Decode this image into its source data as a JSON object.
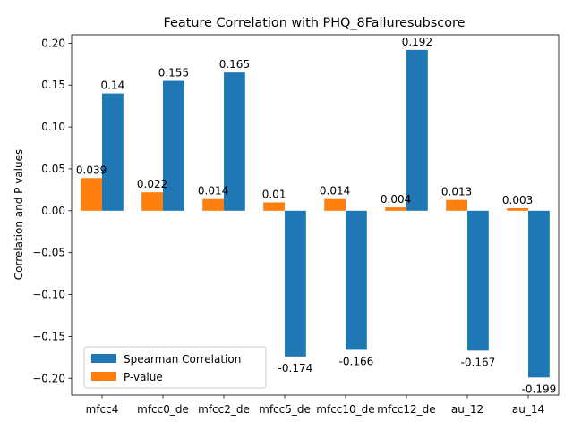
{
  "chart_data": {
    "type": "bar",
    "title": "Feature Correlation with PHQ_8Failuresubscore",
    "xlabel": "",
    "ylabel": "Correlation and P values",
    "ylim": [
      -0.22,
      0.21
    ],
    "yticks": [
      -0.2,
      -0.15,
      -0.1,
      -0.05,
      0.0,
      0.05,
      0.1,
      0.15,
      0.2
    ],
    "ytick_labels": [
      "−0.20",
      "−0.15",
      "−0.10",
      "−0.05",
      "0.00",
      "0.05",
      "0.10",
      "0.15",
      "0.20"
    ],
    "categories": [
      "mfcc4",
      "mfcc0_de",
      "mfcc2_de",
      "mfcc5_de",
      "mfcc10_de",
      "mfcc12_de",
      "au_12",
      "au_14"
    ],
    "series": [
      {
        "name": "Spearman Correlation",
        "color": "#1f77b4",
        "values": [
          0.14,
          0.155,
          0.165,
          -0.174,
          -0.166,
          0.192,
          -0.167,
          -0.199
        ],
        "labels": [
          "0.14",
          "0.155",
          "0.165",
          "-0.174",
          "-0.166",
          "0.192",
          "-0.167",
          "-0.199"
        ]
      },
      {
        "name": "P-value",
        "color": "#ff7f0e",
        "values": [
          0.039,
          0.022,
          0.014,
          0.01,
          0.014,
          0.004,
          0.013,
          0.003
        ],
        "labels": [
          "0.039",
          "0.022",
          "0.014",
          "0.01",
          "0.014",
          "0.004",
          "0.013",
          "0.003"
        ]
      }
    ],
    "grid": false,
    "legend_position": "lower-left"
  }
}
